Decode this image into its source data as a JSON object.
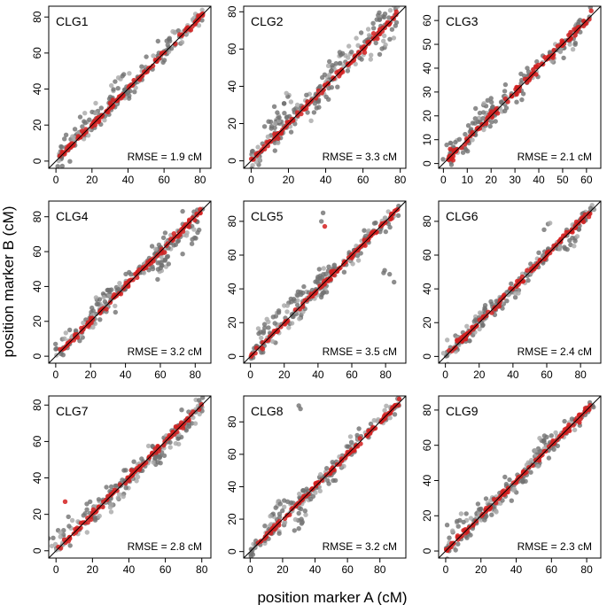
{
  "figure": {
    "xlabel": "position marker A (cM)",
    "ylabel": "position marker B (cM)"
  },
  "colors": {
    "axis": "#000000",
    "grey_points": "#707070",
    "light_points": "#a8a8a8",
    "red_points": "#d42020"
  },
  "chart_data": [
    {
      "type": "scatter",
      "title": "CLG1",
      "rmse": "RMSE = 1.9 cM",
      "xlim": [
        -4,
        86
      ],
      "ylim": [
        -4,
        86
      ],
      "xticks": [
        0,
        20,
        40,
        60,
        80
      ],
      "yticks": [
        0,
        20,
        40,
        60,
        80
      ],
      "noise": 2.5,
      "seed": 11,
      "clusters": [
        [
          10,
          4,
          10
        ],
        [
          18,
          6,
          14
        ],
        [
          36,
          9,
          12
        ],
        [
          60,
          6,
          10
        ]
      ]
    },
    {
      "type": "scatter",
      "title": "CLG2",
      "rmse": "RMSE = 3.3 cM",
      "xlim": [
        -4,
        83
      ],
      "ylim": [
        -4,
        83
      ],
      "xticks": [
        0,
        20,
        40,
        60,
        80
      ],
      "yticks": [
        0,
        20,
        40,
        60,
        80
      ],
      "noise": 3.5,
      "seed": 22,
      "clusters": [
        [
          14,
          8,
          14
        ],
        [
          17,
          12,
          12
        ],
        [
          38,
          -6,
          8
        ],
        [
          47,
          8,
          10
        ],
        [
          70,
          -8,
          10
        ],
        [
          70,
          6,
          10
        ]
      ]
    },
    {
      "type": "scatter",
      "title": "CLG3",
      "rmse": "RMSE = 2.1 cM",
      "xlim": [
        -2,
        66
      ],
      "ylim": [
        -2,
        66
      ],
      "xticks": [
        0,
        10,
        20,
        30,
        40,
        50,
        60
      ],
      "yticks": [
        0,
        10,
        20,
        30,
        40,
        50,
        60
      ],
      "noise": 2.0,
      "seed": 33,
      "clusters": [
        [
          4,
          3,
          16
        ],
        [
          16,
          6,
          14
        ],
        [
          25,
          4,
          10
        ],
        [
          50,
          -3,
          8
        ]
      ]
    },
    {
      "type": "scatter",
      "title": "CLG4",
      "rmse": "RMSE = 3.2 cM",
      "xlim": [
        -4,
        89
      ],
      "ylim": [
        -4,
        89
      ],
      "xticks": [
        0,
        20,
        40,
        60,
        80
      ],
      "yticks": [
        0,
        20,
        40,
        60,
        80
      ],
      "noise": 3.0,
      "seed": 44,
      "clusters": [
        [
          4,
          6,
          8
        ],
        [
          26,
          7,
          14
        ],
        [
          55,
          0,
          14
        ],
        [
          62,
          -8,
          14
        ],
        [
          80,
          -12,
          8
        ]
      ]
    },
    {
      "type": "scatter",
      "title": "CLG5",
      "rmse": "RMSE = 3.5 cM",
      "xlim": [
        -4,
        92
      ],
      "ylim": [
        -4,
        92
      ],
      "xticks": [
        0,
        20,
        40,
        60,
        80
      ],
      "yticks": [
        0,
        20,
        40,
        60,
        80
      ],
      "noise": 3.5,
      "seed": 55,
      "clusters": [
        [
          10,
          8,
          14
        ],
        [
          28,
          8,
          14
        ],
        [
          44,
          6,
          12
        ],
        [
          80,
          -30,
          3
        ]
      ],
      "outliers": [
        [
          43,
          85,
          "g"
        ],
        [
          44,
          77,
          "r"
        ],
        [
          42,
          80,
          "g"
        ],
        [
          85,
          44,
          "g"
        ]
      ]
    },
    {
      "type": "scatter",
      "title": "CLG6",
      "rmse": "RMSE = 2.4 cM",
      "xlim": [
        -4,
        92
      ],
      "ylim": [
        -4,
        92
      ],
      "xticks": [
        0,
        20,
        40,
        60,
        80
      ],
      "yticks": [
        0,
        20,
        40,
        60,
        80
      ],
      "noise": 2.5,
      "seed": 66,
      "clusters": [
        [
          6,
          4,
          10
        ],
        [
          22,
          4,
          10
        ],
        [
          35,
          -3,
          8
        ],
        [
          75,
          -8,
          10
        ],
        [
          60,
          14,
          3
        ]
      ]
    },
    {
      "type": "scatter",
      "title": "CLG7",
      "rmse": "RMSE = 2.8 cM",
      "xlim": [
        -4,
        85
      ],
      "ylim": [
        -4,
        85
      ],
      "xticks": [
        0,
        20,
        40,
        60,
        80
      ],
      "yticks": [
        0,
        20,
        40,
        60,
        80
      ],
      "noise": 3.0,
      "seed": 77,
      "clusters": [
        [
          3,
          8,
          12
        ],
        [
          20,
          6,
          8
        ],
        [
          35,
          -5,
          14
        ],
        [
          55,
          -4,
          14
        ],
        [
          70,
          -4,
          12
        ]
      ],
      "outliers": [
        [
          5,
          27,
          "r"
        ]
      ]
    },
    {
      "type": "scatter",
      "title": "CLG8",
      "rmse": "RMSE = 3.2 cM",
      "xlim": [
        -4,
        96
      ],
      "ylim": [
        -4,
        96
      ],
      "xticks": [
        0,
        20,
        40,
        60,
        80
      ],
      "yticks": [
        0,
        20,
        40,
        60,
        80
      ],
      "noise": 3.0,
      "seed": 88,
      "clusters": [
        [
          20,
          10,
          14
        ],
        [
          32,
          -12,
          10
        ],
        [
          40,
          0,
          8
        ],
        [
          60,
          4,
          10
        ]
      ],
      "outliers": [
        [
          30,
          90,
          "g"
        ],
        [
          31,
          88,
          "g"
        ]
      ]
    },
    {
      "type": "scatter",
      "title": "CLG9",
      "rmse": "RMSE = 2.3 cM",
      "xlim": [
        -4,
        88
      ],
      "ylim": [
        -4,
        88
      ],
      "xticks": [
        0,
        20,
        40,
        60,
        80
      ],
      "yticks": [
        0,
        20,
        40,
        60,
        80
      ],
      "noise": 2.5,
      "seed": 99,
      "clusters": [
        [
          8,
          10,
          10
        ],
        [
          20,
          5,
          8
        ],
        [
          43,
          -4,
          12
        ],
        [
          56,
          6,
          12
        ]
      ]
    }
  ]
}
